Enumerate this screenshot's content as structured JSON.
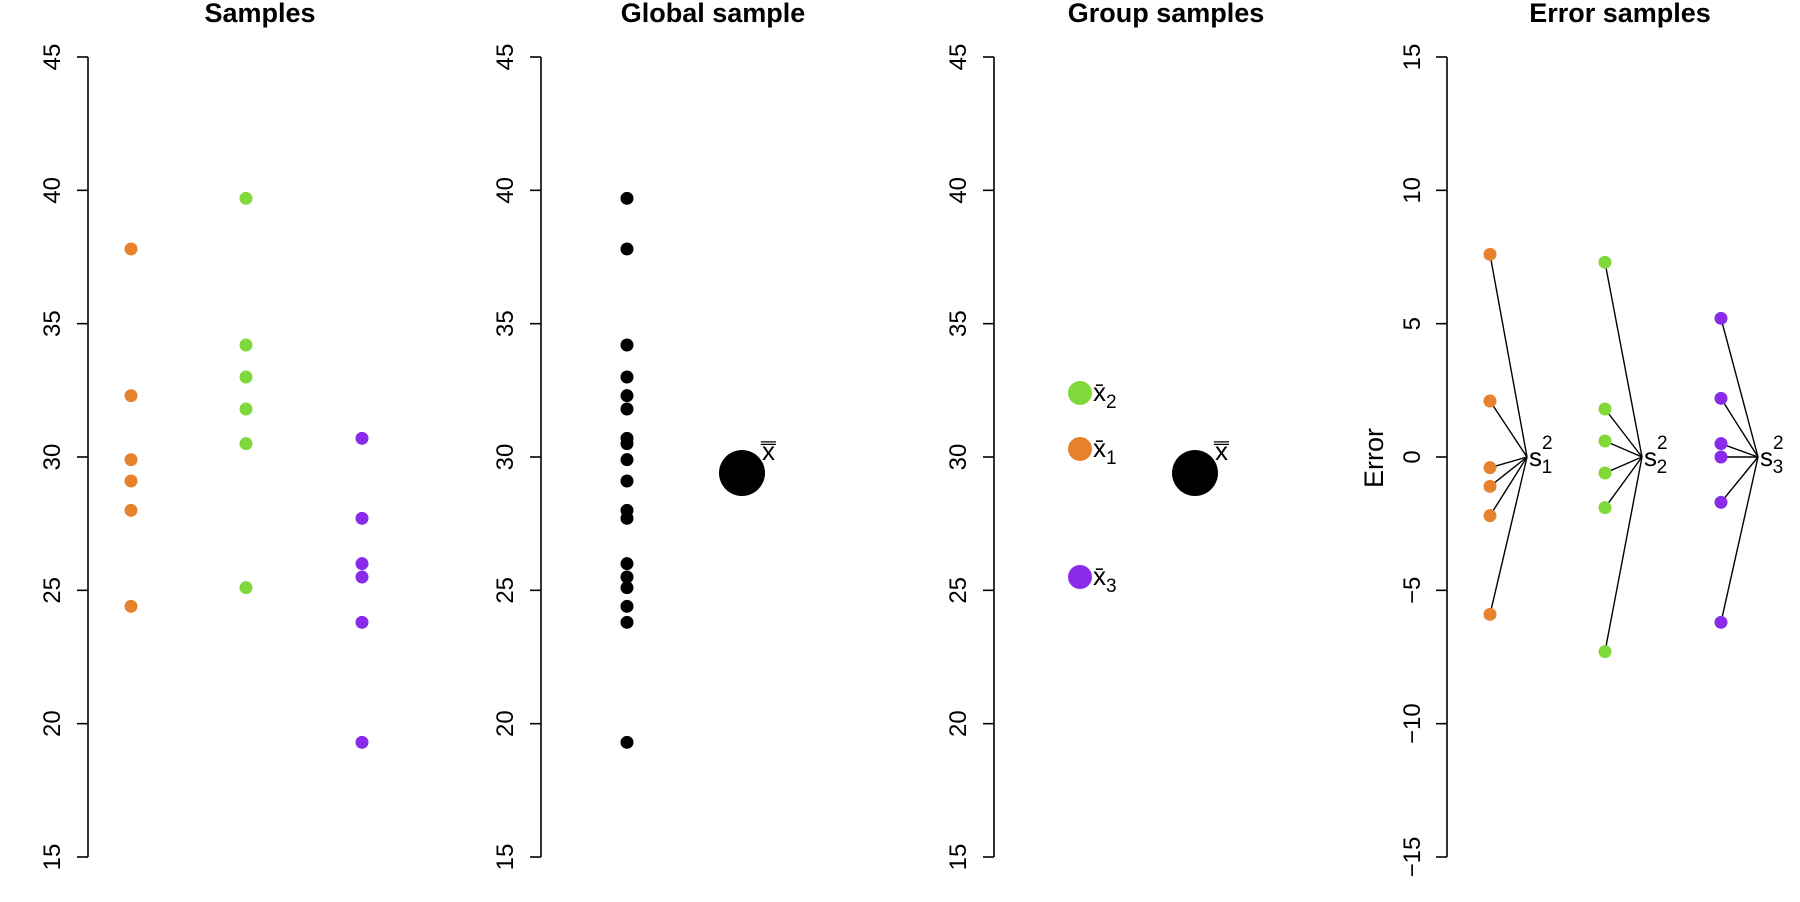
{
  "colors": {
    "group1": "#e6822b",
    "group2": "#7fd93a",
    "group3": "#8b2bea",
    "global": "#000000"
  },
  "chart_data": [
    {
      "type": "scatter",
      "title": "Samples",
      "ylim": [
        15,
        45
      ],
      "yticks": [
        "15",
        "20",
        "25",
        "30",
        "35",
        "40",
        "45"
      ],
      "series": [
        {
          "group": 1,
          "color": "#e6822b",
          "values": [
            37.8,
            32.3,
            29.9,
            29.1,
            28.0,
            24.4
          ]
        },
        {
          "group": 2,
          "color": "#7fd93a",
          "values": [
            39.7,
            34.2,
            33.0,
            31.8,
            30.5,
            25.1
          ]
        },
        {
          "group": 3,
          "color": "#8b2bea",
          "values": [
            30.7,
            27.7,
            26.0,
            25.5,
            23.8,
            19.3
          ]
        }
      ]
    },
    {
      "type": "scatter",
      "title": "Global sample",
      "ylim": [
        15,
        45
      ],
      "yticks": [
        "15",
        "20",
        "25",
        "30",
        "35",
        "40",
        "45"
      ],
      "values": [
        39.7,
        37.8,
        34.2,
        33.0,
        32.3,
        31.8,
        30.7,
        30.5,
        29.9,
        29.1,
        28.0,
        27.7,
        26.0,
        25.5,
        25.1,
        24.4,
        23.8,
        19.3
      ],
      "grand_mean": {
        "label": "x̿",
        "value": 29.4
      }
    },
    {
      "type": "scatter",
      "title": "Group samples",
      "ylim": [
        15,
        45
      ],
      "yticks": [
        "15",
        "20",
        "25",
        "30",
        "35",
        "40",
        "45"
      ],
      "group_means": [
        {
          "label": "x̄",
          "sub": "2",
          "color": "#7fd93a",
          "value": 32.4
        },
        {
          "label": "x̄",
          "sub": "1",
          "color": "#e6822b",
          "value": 30.3
        },
        {
          "label": "x̄",
          "sub": "3",
          "color": "#8b2bea",
          "value": 25.5
        }
      ],
      "grand_mean": {
        "label": "x̿",
        "value": 29.4
      }
    },
    {
      "type": "scatter",
      "title": "Error samples",
      "ylabel": "Error",
      "ylim": [
        -15,
        15
      ],
      "yticks": [
        "−15",
        "−10",
        "−5",
        "0",
        "5",
        "10",
        "15"
      ],
      "series": [
        {
          "group": 1,
          "color": "#e6822b",
          "values": [
            7.6,
            2.1,
            -0.4,
            -1.1,
            -2.2,
            -5.9
          ],
          "variance_label": "s",
          "sub": "1",
          "sup": "2"
        },
        {
          "group": 2,
          "color": "#7fd93a",
          "values": [
            7.3,
            1.8,
            0.6,
            -0.6,
            -1.9,
            -7.3
          ],
          "variance_label": "s",
          "sub": "2",
          "sup": "2"
        },
        {
          "group": 3,
          "color": "#8b2bea",
          "values": [
            5.2,
            2.2,
            0.5,
            0.0,
            -1.7,
            -6.2
          ],
          "variance_label": "s",
          "sub": "3",
          "sup": "2"
        }
      ]
    }
  ]
}
